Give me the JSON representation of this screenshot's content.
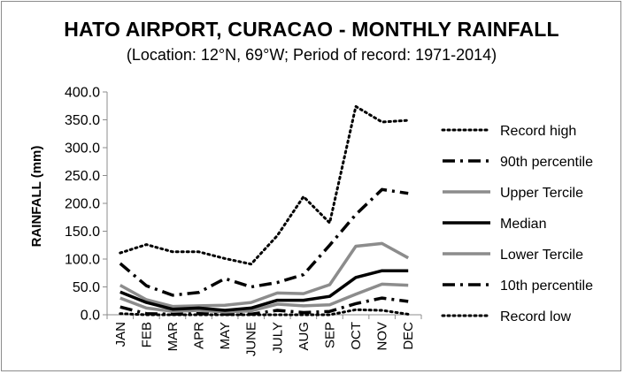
{
  "chart_data": {
    "type": "line",
    "title": "HATO AIRPORT, CURACAO - MONTHLY RAINFALL",
    "subtitle": "(Location: 12°N, 69°W; Period of record: 1971-2014)",
    "xlabel": "",
    "ylabel": "RAINFALL (mm)",
    "ylim": [
      0,
      400
    ],
    "yticks": [
      "0.0",
      "50.0",
      "100.0",
      "150.0",
      "200.0",
      "250.0",
      "300.0",
      "350.0",
      "400.0"
    ],
    "categories": [
      "JAN",
      "FEB",
      "MAR",
      "APR",
      "MAY",
      "JUNE",
      "JULY",
      "AUG",
      "SEP",
      "OCT",
      "NOV",
      "DEC"
    ],
    "grid": false,
    "legend_position": "right",
    "series": [
      {
        "name": "Record high",
        "style": "dotted",
        "color": "#000000",
        "values": [
          111,
          126,
          113,
          113,
          101,
          91,
          142,
          212,
          165,
          374,
          346,
          349
        ]
      },
      {
        "name": "90th percentile",
        "style": "dashdot",
        "color": "#000000",
        "values": [
          92,
          52,
          35,
          40,
          65,
          50,
          58,
          72,
          125,
          180,
          225,
          218
        ]
      },
      {
        "name": "Upper Tercile",
        "style": "solid",
        "color": "#8c8c8c",
        "values": [
          53,
          27,
          15,
          16,
          17,
          22,
          39,
          38,
          54,
          123,
          128,
          102
        ]
      },
      {
        "name": "Median",
        "style": "solid",
        "color": "#000000",
        "values": [
          41,
          22,
          10,
          12,
          8,
          12,
          26,
          26,
          33,
          67,
          79,
          79
        ]
      },
      {
        "name": "Lower Tercile",
        "style": "solid",
        "color": "#8c8c8c",
        "values": [
          30,
          12,
          6,
          8,
          5,
          7,
          19,
          16,
          18,
          37,
          55,
          53
        ]
      },
      {
        "name": "10th percentile",
        "style": "dashdot",
        "color": "#000000",
        "values": [
          14,
          2,
          1,
          2,
          1,
          1,
          8,
          4,
          6,
          20,
          30,
          24
        ]
      },
      {
        "name": "Record low",
        "style": "dotted",
        "color": "#000000",
        "values": [
          2,
          0,
          0,
          0,
          0,
          0,
          0,
          0,
          0,
          9,
          8,
          1
        ]
      }
    ]
  }
}
